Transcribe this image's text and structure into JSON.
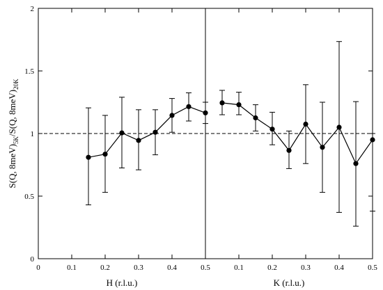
{
  "chart_data": {
    "type": "scatter",
    "ylabel": {
      "main": "S(Q, 8meV)",
      "sub1": "5K",
      "mid": "/S(Q, 8meV)",
      "sub2": "20K"
    },
    "ylim": [
      0,
      2
    ],
    "yticks": [
      0,
      0.5,
      1,
      1.5,
      2
    ],
    "ytick_labels": [
      "0",
      "0.5",
      "1",
      "1.5",
      "2"
    ],
    "reference_line": 1,
    "grid": false,
    "legend": "none",
    "panels": [
      {
        "xlabel": "H (r.l.u.)",
        "xlim": [
          0,
          0.5
        ],
        "xticks": [
          0,
          0.1,
          0.2,
          0.3,
          0.4,
          0.5
        ],
        "xtick_labels": [
          "0",
          "0.1",
          "0.2",
          "0.3",
          "0.4",
          "0.5"
        ],
        "x": [
          0.15,
          0.2,
          0.25,
          0.3,
          0.35,
          0.4,
          0.45,
          0.5
        ],
        "y": [
          0.81,
          0.835,
          1.005,
          0.945,
          1.01,
          1.145,
          1.215,
          1.165
        ],
        "yerr_low": [
          0.43,
          0.53,
          0.725,
          0.71,
          0.83,
          1.01,
          1.1,
          1.08
        ],
        "yerr_high": [
          1.205,
          1.145,
          1.29,
          1.19,
          1.19,
          1.28,
          1.325,
          1.25
        ]
      },
      {
        "xlabel": "K (r.l.u.)",
        "xlim": [
          0,
          0.5
        ],
        "xticks": [
          0,
          0.1,
          0.2,
          0.3,
          0.4,
          0.5
        ],
        "xtick_labels": [
          "",
          "0.1",
          "0.2",
          "0.3",
          "0.4",
          "0.5"
        ],
        "x": [
          0.05,
          0.1,
          0.15,
          0.2,
          0.25,
          0.3,
          0.35,
          0.4,
          0.45,
          0.5
        ],
        "y": [
          1.245,
          1.23,
          1.125,
          1.035,
          0.865,
          1.075,
          0.89,
          1.05,
          0.76,
          0.95
        ],
        "yerr_low": [
          1.15,
          1.15,
          1.02,
          0.91,
          0.72,
          0.76,
          0.53,
          0.37,
          0.26,
          0.38
        ],
        "yerr_high": [
          1.345,
          1.33,
          1.23,
          1.17,
          1.02,
          1.39,
          1.25,
          1.735,
          1.255,
          1.0
        ]
      }
    ]
  }
}
